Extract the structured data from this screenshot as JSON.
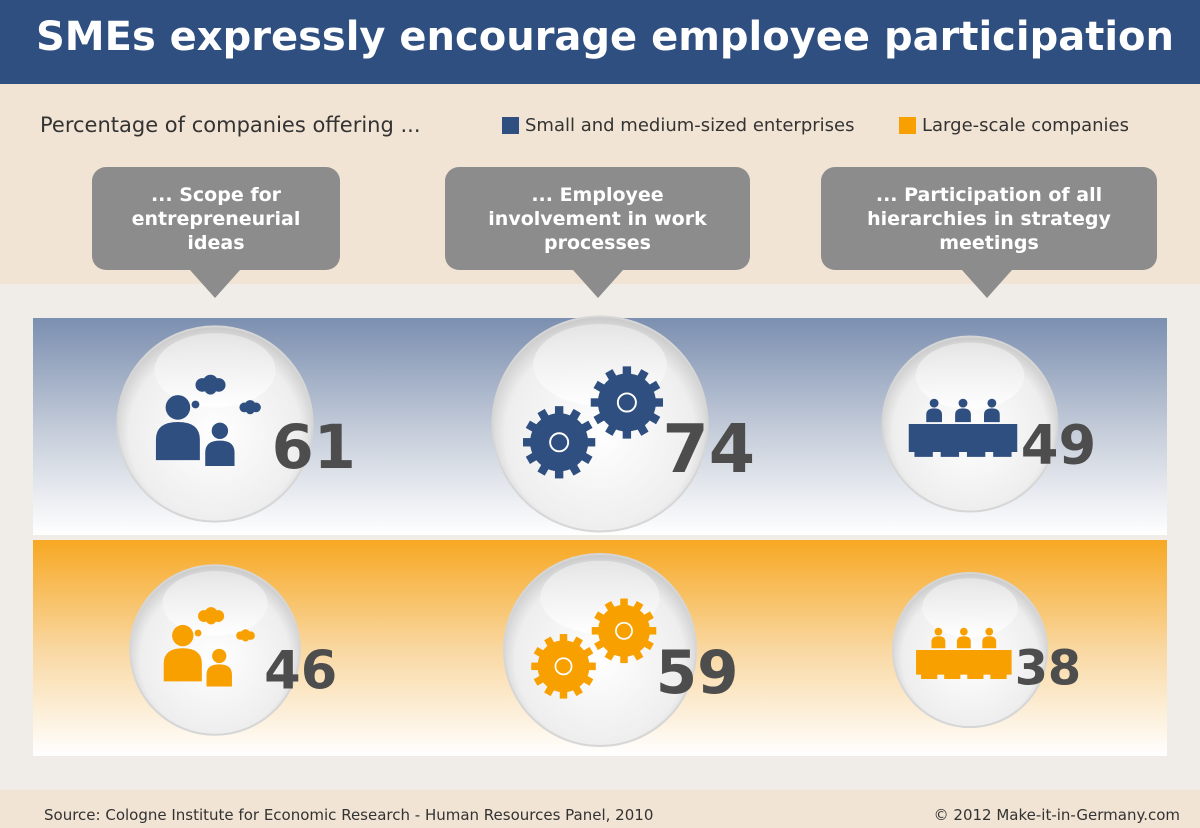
{
  "chart_data": {
    "type": "bubble",
    "title": "SMEs expressly encourage employee participation",
    "subtitle": "Percentage of companies offering ...",
    "categories": [
      "... Scope for entrepreneurial ideas",
      "... Employee involvement in work processes",
      "... Participation of all hierarchies in strategy meetings"
    ],
    "series": [
      {
        "name": "Small and medium-sized enterprises",
        "color": "#2e4f7f",
        "values": [
          61,
          74,
          49
        ]
      },
      {
        "name": "Large-scale companies",
        "color": "#f7a000",
        "values": [
          46,
          59,
          38
        ]
      }
    ],
    "source": "Source: Cologne Institute for Economic Research - Human Resources Panel, 2010",
    "copyright": "© 2012 Make-it-in-Germany.com"
  }
}
